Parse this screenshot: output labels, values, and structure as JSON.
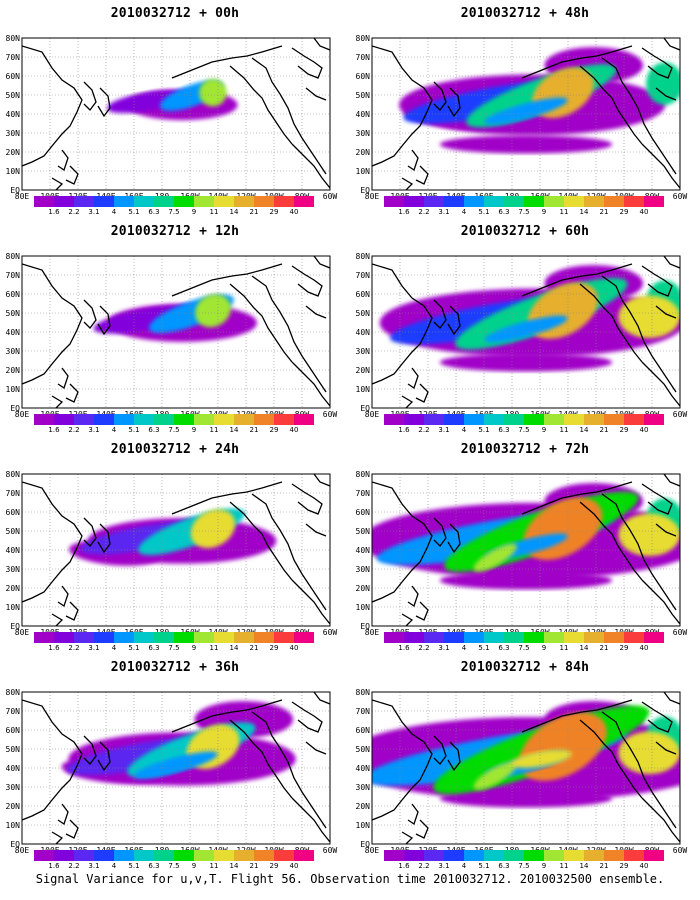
{
  "panels": [
    {
      "title": "2010032712 + 00h",
      "level": 0
    },
    {
      "title": "2010032712 + 48h",
      "level": 4
    },
    {
      "title": "2010032712 + 12h",
      "level": 1
    },
    {
      "title": "2010032712 + 60h",
      "level": 5
    },
    {
      "title": "2010032712 + 24h",
      "level": 2
    },
    {
      "title": "2010032712 + 72h",
      "level": 6
    },
    {
      "title": "2010032712 + 36h",
      "level": 3
    },
    {
      "title": "2010032712 + 84h",
      "level": 7
    }
  ],
  "lat_labels": [
    "80N",
    "70N",
    "60N",
    "50N",
    "40N",
    "30N",
    "20N",
    "10N",
    "EQ"
  ],
  "lon_labels": [
    "80E",
    "100E",
    "120E",
    "140E",
    "160E",
    "180",
    "160W",
    "140W",
    "120W",
    "100W",
    "80W",
    "60W"
  ],
  "colorbar": {
    "labels": [
      "1.6",
      "2.2",
      "3.1",
      "4",
      "5.1",
      "6.3",
      "7.5",
      "9",
      "11",
      "14",
      "21",
      "29",
      "40"
    ],
    "colors": [
      "#a000c8",
      "#8200dc",
      "#5a28f0",
      "#1e3cff",
      "#0096ff",
      "#00c8c8",
      "#00d28c",
      "#00dc00",
      "#a0e632",
      "#e6dc32",
      "#e6af2d",
      "#f08228",
      "#fa3c3c",
      "#f00082"
    ]
  },
  "caption": "Signal Variance for u,v,T. Flight 56. Observation time 2010032712. 2010032500 ensemble."
}
